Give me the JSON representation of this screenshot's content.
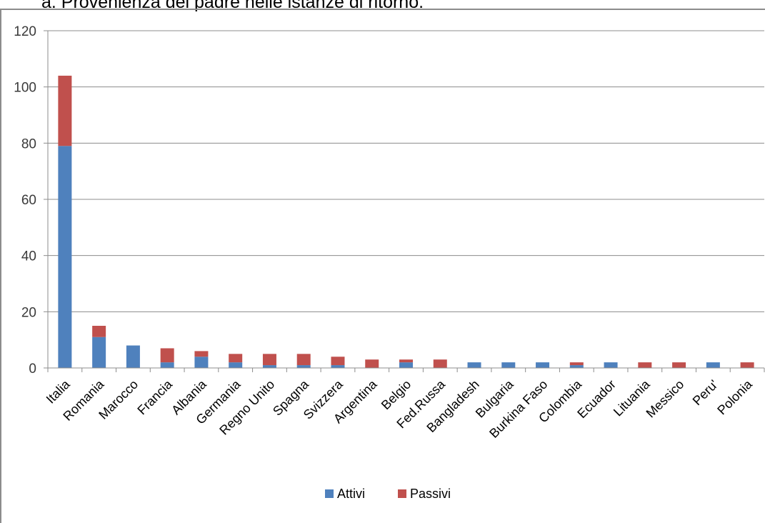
{
  "heading": "a.   Provenienza del padre nelle istanze di ritorno.",
  "colors": {
    "attivi": "#4f81bd",
    "passivi": "#c0504d",
    "grid": "#8c8c8c"
  },
  "chart_data": {
    "type": "bar",
    "stacked": true,
    "title": "",
    "xlabel": "",
    "ylabel": "",
    "ylim": [
      0,
      120
    ],
    "yticks": [
      0,
      20,
      40,
      60,
      80,
      100,
      120
    ],
    "grid": true,
    "legend_position": "bottom",
    "categories": [
      "Italia",
      "Romania",
      "Marocco",
      "Francia",
      "Albania",
      "Germania",
      "Regno Unito",
      "Spagna",
      "Svizzera",
      "Argentina",
      "Belgio",
      "Fed.Russa",
      "Bangladesh",
      "Bulgaria",
      "Burkina Faso",
      "Colombia",
      "Ecuador",
      "Lituania",
      "Messico",
      "Peru'",
      "Polonia"
    ],
    "series": [
      {
        "name": "Attivi",
        "values": [
          79,
          11,
          8,
          2,
          4,
          2,
          1,
          1,
          1,
          0,
          2,
          0,
          2,
          2,
          2,
          1,
          2,
          0,
          0,
          2,
          0
        ]
      },
      {
        "name": "Passivi",
        "values": [
          25,
          4,
          0,
          5,
          2,
          3,
          4,
          4,
          3,
          3,
          1,
          3,
          0,
          0,
          0,
          1,
          0,
          2,
          2,
          0,
          2
        ]
      }
    ]
  }
}
